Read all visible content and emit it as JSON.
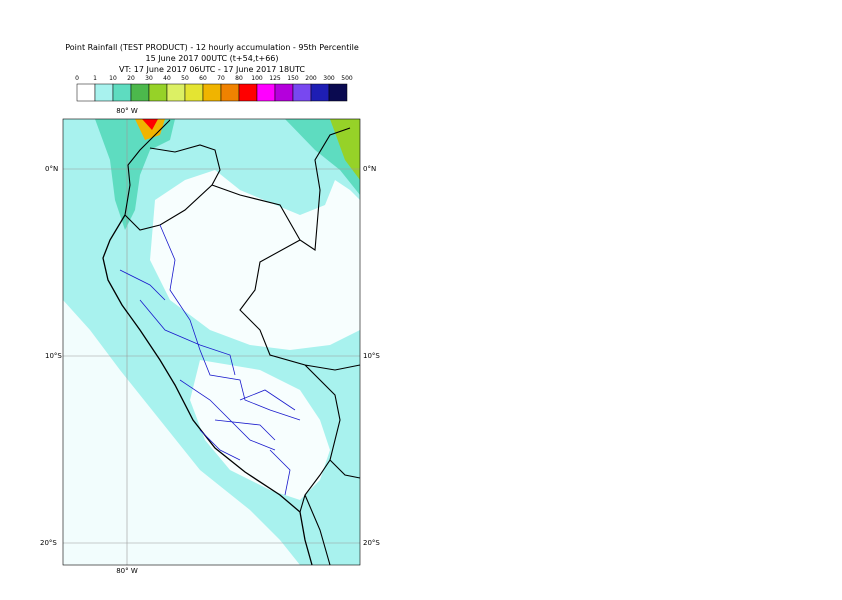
{
  "title": [
    "Point Rainfall (TEST PRODUCT) - 12 hourly accumulation - 95th Percentile",
    "15 June 2017 00UTC (t+54,t+66)",
    "VT: 17 June 2017 06UTC - 17 June 2017 18UTC"
  ],
  "legend": {
    "thresholds": [
      "0",
      "1",
      "10",
      "20",
      "30",
      "40",
      "50",
      "60",
      "70",
      "80",
      "100",
      "125",
      "150",
      "200",
      "300",
      "500"
    ],
    "colors": [
      "#ffffff",
      "#a8f2ee",
      "#5edcc0",
      "#4cb84c",
      "#96d228",
      "#dcf064",
      "#e4e432",
      "#f0b400",
      "#f08200",
      "#ff0000",
      "#ff00ff",
      "#b400dc",
      "#7848f0",
      "#1e1eb4",
      "#0a0a50"
    ]
  },
  "map": {
    "lon_label": "80° W",
    "lat_labels": [
      "0°N",
      "10°S",
      "20°S"
    ]
  }
}
